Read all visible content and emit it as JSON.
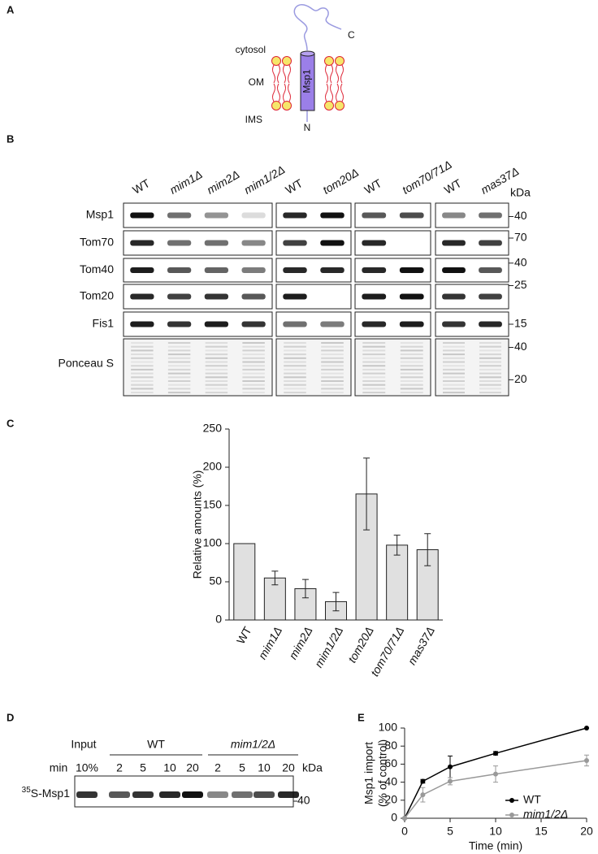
{
  "panel_a": {
    "label": "A",
    "cytosol": "cytosol",
    "om": "OM",
    "ims": "IMS",
    "protein": "Msp1",
    "c_term": "C",
    "n_term": "N"
  },
  "panel_b": {
    "label": "B",
    "lane_groups": [
      [
        "WT",
        "mim1Δ",
        "mim2Δ",
        "mim1/2Δ"
      ],
      [
        "WT",
        "tom20Δ"
      ],
      [
        "WT",
        "tom70/71Δ"
      ],
      [
        "WT",
        "mas37Δ"
      ]
    ],
    "kda": "kDa",
    "rows": [
      {
        "name": "Msp1",
        "markers": [
          40
        ]
      },
      {
        "name": "Tom70",
        "markers": [
          70
        ]
      },
      {
        "name": "Tom40",
        "markers": [
          40
        ]
      },
      {
        "name": "Tom20",
        "markers": [
          25
        ]
      },
      {
        "name": "Fis1",
        "markers": [
          15
        ]
      },
      {
        "name": "Ponceau S",
        "markers": [
          40,
          20
        ]
      }
    ]
  },
  "panel_d": {
    "label": "D",
    "input": "Input",
    "input_amount": "10%",
    "groups": [
      "WT",
      "mim1/2Δ"
    ],
    "min": "min",
    "times": [
      [
        2,
        5,
        10,
        20
      ],
      [
        2,
        5,
        10,
        20
      ]
    ],
    "kda": "kDa",
    "row_sup": "35",
    "row": "S-Msp1",
    "marker": 40
  },
  "chart_data": [
    {
      "type": "bar",
      "panel_label": "C",
      "y_label": "Relative amounts (%)",
      "categories": [
        "WT",
        "mim1Δ",
        "mim2Δ",
        "mim1/2Δ",
        "tom20Δ",
        "tom70/71Δ",
        "mas37Δ"
      ],
      "values": [
        100,
        55,
        41,
        24,
        165,
        98,
        92
      ],
      "errors": [
        0,
        9,
        12,
        12,
        47,
        13,
        21
      ],
      "color": "#e0e0e0",
      "ylim": [
        0,
        250
      ],
      "yticks": [
        0,
        50,
        100,
        150,
        200,
        250
      ]
    },
    {
      "type": "line",
      "panel_label": "E",
      "y_label": [
        "Msp1 import",
        "(% of control)"
      ],
      "x_label": "Time (min)",
      "x": [
        0,
        2,
        5,
        10,
        20
      ],
      "series": [
        {
          "name": "WT",
          "color": "#000000",
          "values": [
            0,
            41,
            57,
            72,
            100
          ],
          "errors": [
            0,
            2,
            12,
            2,
            0
          ]
        },
        {
          "name": "mim1/2Δ",
          "color": "#999999",
          "values": [
            0,
            26,
            41,
            49,
            64
          ],
          "errors": [
            0,
            8,
            4,
            9,
            6
          ]
        }
      ],
      "xlim": [
        0,
        20
      ],
      "xticks": [
        0,
        5,
        10,
        15,
        20
      ],
      "ylim": [
        0,
        100
      ],
      "yticks": [
        0,
        20,
        40,
        60,
        80,
        100
      ],
      "legend": "lower right"
    }
  ]
}
